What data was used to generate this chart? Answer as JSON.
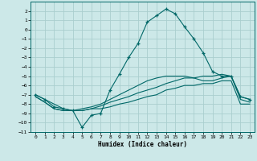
{
  "title": "",
  "xlabel": "Humidex (Indice chaleur)",
  "ylabel": "",
  "bg_color": "#cce8e8",
  "grid_color": "#aacece",
  "line_color": "#006868",
  "xlim": [
    -0.5,
    23.5
  ],
  "ylim": [
    -11,
    3
  ],
  "yticks": [
    2,
    1,
    0,
    -1,
    -2,
    -3,
    -4,
    -5,
    -6,
    -7,
    -8,
    -9,
    -10,
    -11
  ],
  "xticks": [
    0,
    1,
    2,
    3,
    4,
    5,
    6,
    7,
    8,
    9,
    10,
    11,
    12,
    13,
    14,
    15,
    16,
    17,
    18,
    19,
    20,
    21,
    22,
    23
  ],
  "series": [
    {
      "x": [
        0,
        1,
        2,
        3,
        4,
        5,
        6,
        7,
        8,
        9,
        10,
        11,
        12,
        13,
        14,
        15,
        16,
        17,
        18,
        19,
        20,
        21,
        22,
        23
      ],
      "y": [
        -7.0,
        -7.5,
        -8.3,
        -8.5,
        -8.7,
        -10.5,
        -9.2,
        -9.0,
        -6.5,
        -4.8,
        -3.0,
        -1.5,
        0.8,
        1.5,
        2.2,
        1.7,
        0.3,
        -1.0,
        -2.5,
        -4.5,
        -5.0,
        -5.0,
        -7.2,
        -7.5
      ],
      "marker": "+"
    },
    {
      "x": [
        0,
        1,
        2,
        3,
        4,
        5,
        6,
        7,
        8,
        9,
        10,
        11,
        12,
        13,
        14,
        15,
        16,
        17,
        18,
        19,
        20,
        21,
        22,
        23
      ],
      "y": [
        -7.2,
        -7.8,
        -8.5,
        -8.7,
        -8.7,
        -8.7,
        -8.5,
        -8.5,
        -8.3,
        -8.0,
        -7.8,
        -7.5,
        -7.2,
        -7.0,
        -6.5,
        -6.3,
        -6.0,
        -6.0,
        -5.8,
        -5.8,
        -5.5,
        -5.5,
        -8.0,
        -8.0
      ],
      "marker": null
    },
    {
      "x": [
        0,
        1,
        2,
        3,
        4,
        5,
        6,
        7,
        8,
        9,
        10,
        11,
        12,
        13,
        14,
        15,
        16,
        17,
        18,
        19,
        20,
        21,
        22,
        23
      ],
      "y": [
        -7.0,
        -7.5,
        -8.0,
        -8.5,
        -8.7,
        -8.7,
        -8.5,
        -8.2,
        -7.8,
        -7.5,
        -7.2,
        -6.8,
        -6.5,
        -6.2,
        -5.8,
        -5.5,
        -5.2,
        -5.2,
        -5.0,
        -5.0,
        -4.8,
        -5.0,
        -7.5,
        -7.8
      ],
      "marker": null
    },
    {
      "x": [
        0,
        1,
        2,
        3,
        4,
        5,
        6,
        7,
        8,
        9,
        10,
        11,
        12,
        13,
        14,
        15,
        16,
        17,
        18,
        19,
        20,
        21,
        22,
        23
      ],
      "y": [
        -7.2,
        -7.8,
        -8.5,
        -8.7,
        -8.7,
        -8.5,
        -8.3,
        -8.0,
        -7.5,
        -7.0,
        -6.5,
        -6.0,
        -5.5,
        -5.2,
        -5.0,
        -5.0,
        -5.0,
        -5.2,
        -5.5,
        -5.5,
        -5.2,
        -5.0,
        -7.2,
        -7.5
      ],
      "marker": null
    }
  ]
}
